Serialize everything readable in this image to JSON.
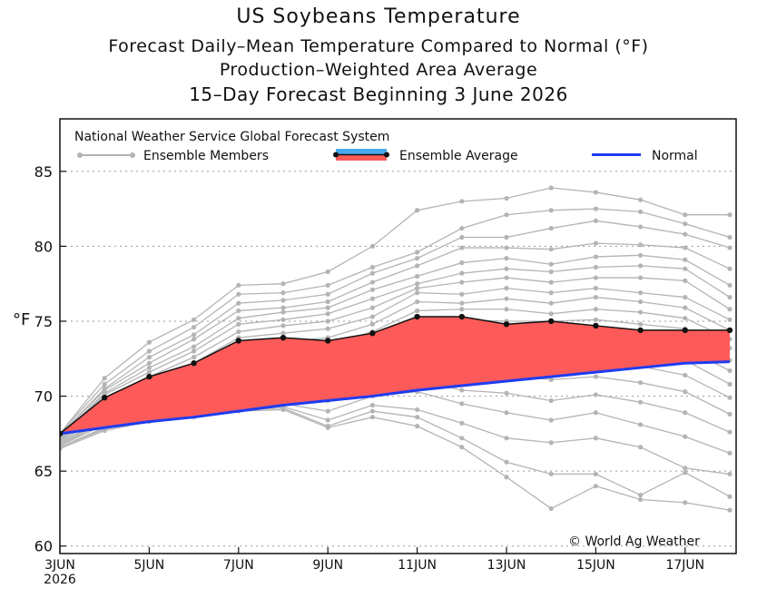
{
  "chart_data": {
    "type": "line",
    "title": "US Soybeans Temperature",
    "subtitle_lines": [
      "Forecast Daily–Mean Temperature Compared to Normal (°F)",
      "Production–Weighted Area Average",
      "15–Day Forecast Beginning 3 June 2026"
    ],
    "ylabel": "°F",
    "ylim": [
      59.5,
      88.5
    ],
    "yticks": [
      60,
      65,
      70,
      75,
      80,
      85
    ],
    "x_days": [
      "3JUN",
      "4JUN",
      "5JUN",
      "6JUN",
      "7JUN",
      "8JUN",
      "9JUN",
      "10JUN",
      "11JUN",
      "12JUN",
      "13JUN",
      "14JUN",
      "15JUN",
      "16JUN",
      "17JUN",
      "18JUN"
    ],
    "xticks": [
      {
        "day": "3JUN",
        "label": "3JUN",
        "sublabel": "2026"
      },
      {
        "day": "5JUN",
        "label": "5JUN"
      },
      {
        "day": "7JUN",
        "label": "7JUN"
      },
      {
        "day": "9JUN",
        "label": "9JUN"
      },
      {
        "day": "11JUN",
        "label": "11JUN"
      },
      {
        "day": "13JUN",
        "label": "13JUN"
      },
      {
        "day": "15JUN",
        "label": "15JUN"
      },
      {
        "day": "17JUN",
        "label": "17JUN"
      }
    ],
    "header_label": "National Weather Service Global Forecast System",
    "legend": {
      "members": "Ensemble Members",
      "average": "Ensemble Average",
      "normal": "Normal"
    },
    "watermark": "© World Ag Weather",
    "grid": "horizontal dotted",
    "colors": {
      "members": "#b4b4b4",
      "average_line": "#111111",
      "above_fill": "#ff5a5a",
      "below_fill": "#4aa8ee",
      "normal": "#1f3cf0"
    },
    "series": [
      {
        "name": "Ensemble Average",
        "values": [
          67.5,
          69.9,
          71.3,
          72.2,
          73.7,
          73.9,
          73.7,
          74.2,
          75.3,
          75.3,
          74.8,
          75.0,
          74.7,
          74.4,
          74.4,
          74.4
        ]
      },
      {
        "name": "Normal",
        "values": [
          67.5,
          67.9,
          68.3,
          68.6,
          69.0,
          69.4,
          69.7,
          70.0,
          70.4,
          70.7,
          71.0,
          71.3,
          71.6,
          71.9,
          72.2,
          72.3
        ]
      }
    ],
    "members": [
      [
        67.5,
        71.2,
        73.6,
        75.1,
        77.4,
        77.5,
        78.3,
        80.0,
        82.4,
        83.0,
        83.2,
        83.9,
        83.6,
        83.1,
        82.1,
        82.1
      ],
      [
        67.5,
        70.8,
        73.0,
        74.6,
        76.8,
        76.9,
        77.4,
        78.6,
        79.6,
        81.2,
        82.1,
        82.4,
        82.5,
        82.3,
        81.5,
        80.6
      ],
      [
        67.4,
        70.5,
        72.6,
        74.1,
        76.2,
        76.4,
        76.8,
        78.2,
        79.2,
        80.6,
        80.6,
        81.2,
        81.7,
        81.3,
        80.8,
        79.9
      ],
      [
        67.4,
        70.4,
        72.2,
        73.8,
        75.7,
        75.9,
        76.3,
        77.6,
        78.7,
        79.9,
        79.9,
        79.8,
        80.2,
        80.1,
        79.9,
        78.5
      ],
      [
        67.3,
        70.2,
        71.9,
        73.3,
        75.2,
        75.6,
        75.9,
        77.1,
        78.0,
        78.9,
        79.2,
        78.8,
        79.3,
        79.4,
        79.1,
        77.4
      ],
      [
        67.3,
        70.1,
        71.6,
        73.0,
        74.8,
        75.1,
        75.5,
        76.5,
        77.5,
        78.2,
        78.5,
        78.3,
        78.6,
        78.7,
        78.5,
        76.6
      ],
      [
        67.2,
        69.9,
        71.3,
        72.6,
        74.3,
        74.7,
        75.0,
        75.9,
        77.2,
        77.6,
        77.9,
        77.6,
        77.9,
        77.9,
        77.7,
        75.8
      ],
      [
        67.2,
        69.7,
        71.1,
        72.2,
        73.9,
        74.2,
        74.5,
        75.3,
        76.9,
        76.8,
        77.2,
        76.9,
        77.2,
        76.9,
        76.6,
        75.1
      ],
      [
        67.1,
        69.6,
        70.8,
        71.9,
        73.4,
        73.6,
        73.9,
        74.8,
        76.3,
        76.2,
        76.5,
        76.2,
        76.6,
        76.3,
        75.9,
        74.4
      ],
      [
        67.1,
        69.4,
        70.5,
        71.5,
        72.9,
        73.1,
        73.4,
        74.3,
        75.7,
        75.8,
        75.8,
        75.5,
        75.8,
        75.6,
        75.2,
        73.8
      ],
      [
        67.0,
        69.3,
        70.2,
        71.2,
        72.4,
        72.6,
        72.9,
        73.9,
        75.1,
        75.1,
        75.0,
        75.0,
        75.1,
        74.8,
        74.5,
        73.2
      ],
      [
        67.0,
        69.1,
        70.0,
        70.8,
        71.9,
        72.1,
        72.3,
        73.4,
        74.6,
        74.3,
        74.4,
        74.4,
        74.5,
        74.1,
        73.9,
        72.4
      ],
      [
        66.9,
        68.9,
        69.7,
        70.5,
        71.4,
        71.7,
        71.8,
        72.9,
        73.9,
        73.7,
        73.7,
        73.7,
        73.8,
        73.5,
        73.2,
        71.7
      ],
      [
        66.9,
        68.8,
        69.4,
        70.1,
        71.0,
        71.2,
        71.3,
        72.4,
        73.3,
        73.1,
        73.1,
        73.1,
        73.0,
        72.8,
        72.4,
        70.8
      ],
      [
        66.8,
        68.6,
        69.2,
        69.8,
        70.6,
        70.8,
        70.8,
        71.8,
        72.6,
        72.4,
        72.3,
        72.3,
        72.2,
        72.0,
        71.4,
        69.9
      ],
      [
        66.8,
        68.4,
        69.0,
        69.5,
        70.1,
        70.3,
        70.3,
        71.2,
        71.9,
        71.5,
        71.4,
        71.1,
        71.3,
        70.9,
        70.3,
        68.8
      ],
      [
        66.7,
        68.3,
        68.8,
        69.2,
        69.7,
        69.9,
        69.7,
        70.6,
        71.1,
        70.4,
        70.2,
        69.7,
        70.1,
        69.6,
        68.9,
        67.6
      ],
      [
        66.7,
        68.1,
        68.6,
        69.0,
        69.4,
        69.5,
        69.0,
        70.0,
        70.3,
        69.5,
        68.9,
        68.4,
        68.9,
        68.1,
        67.3,
        66.2
      ],
      [
        66.6,
        67.9,
        68.5,
        68.8,
        69.2,
        69.3,
        68.4,
        69.4,
        69.1,
        68.2,
        67.2,
        66.9,
        67.2,
        66.6,
        65.2,
        64.8
      ],
      [
        66.6,
        67.8,
        68.4,
        68.7,
        69.1,
        69.2,
        68.0,
        69.0,
        68.6,
        67.2,
        65.6,
        64.8,
        64.8,
        63.4,
        64.9,
        63.3
      ],
      [
        66.5,
        67.7,
        68.3,
        68.6,
        69.0,
        69.1,
        67.9,
        68.6,
        68.0,
        66.6,
        64.6,
        62.5,
        64.0,
        63.1,
        62.9,
        62.4
      ]
    ]
  }
}
